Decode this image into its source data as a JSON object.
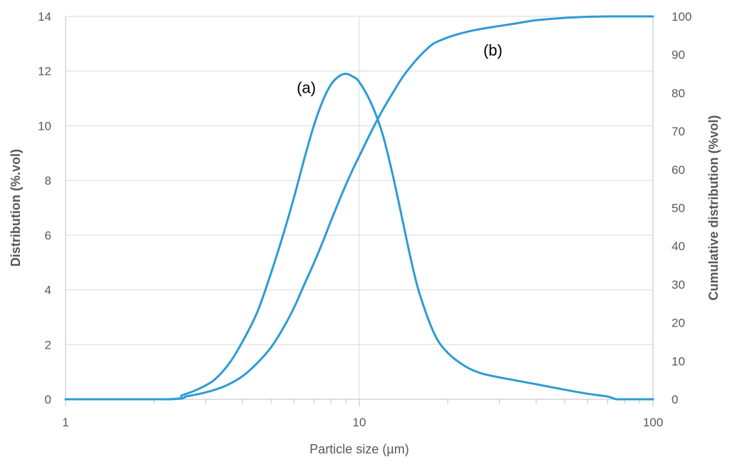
{
  "chart_data": {
    "type": "line",
    "x_scale": "log",
    "xlabel": "Particle size (µm)",
    "ylabel_left": "Distribution (%.vol)",
    "ylabel_right": "Cumulative distribution (%vol)",
    "xlim": [
      1,
      100
    ],
    "ylim_left": [
      0,
      14
    ],
    "ylim_right": [
      0,
      100
    ],
    "x_ticks": [
      1,
      10,
      100
    ],
    "y_ticks_left": [
      0,
      2,
      4,
      6,
      8,
      10,
      12,
      14
    ],
    "y_ticks_right": [
      0,
      10,
      20,
      30,
      40,
      50,
      60,
      70,
      80,
      90,
      100
    ],
    "grid": true,
    "color": "#2e9bd6",
    "annotations": [
      {
        "text": "(a)",
        "series": "distribution"
      },
      {
        "text": "(b)",
        "series": "cumulative"
      }
    ],
    "series": [
      {
        "id": "distribution",
        "axis": "left",
        "x": [
          1,
          2.25,
          2.5,
          2.8,
          3.2,
          3.6,
          4.0,
          4.5,
          5.0,
          5.5,
          6.0,
          6.5,
          7.0,
          7.5,
          8.0,
          8.5,
          9.0,
          9.5,
          10.0,
          11.0,
          12.0,
          13.0,
          14.0,
          15.0,
          16.0,
          18.0,
          20.0,
          23.0,
          26.0,
          30.0,
          40.0,
          50.0,
          60.0,
          70.0,
          75.0,
          80.0,
          100.0
        ],
        "y": [
          0,
          0,
          0.15,
          0.35,
          0.7,
          1.3,
          2.1,
          3.2,
          4.6,
          6.0,
          7.4,
          8.8,
          10.0,
          10.9,
          11.5,
          11.8,
          11.9,
          11.8,
          11.6,
          10.8,
          9.7,
          8.2,
          6.6,
          5.1,
          3.9,
          2.4,
          1.7,
          1.2,
          0.95,
          0.8,
          0.55,
          0.35,
          0.2,
          0.1,
          0.0,
          0.0,
          0.0
        ]
      },
      {
        "id": "cumulative",
        "axis": "right",
        "x": [
          1,
          2.25,
          2.6,
          3.0,
          3.5,
          4.0,
          4.5,
          5.0,
          5.5,
          6.0,
          6.5,
          7.0,
          7.5,
          8.0,
          8.5,
          9.0,
          9.5,
          10.0,
          11.0,
          12.0,
          13.0,
          14.0,
          15.0,
          16.0,
          17.0,
          18.0,
          20.0,
          22.0,
          25.0,
          30.0,
          35.0,
          40.0,
          50.0,
          60.0,
          70.0,
          100.0
        ],
        "y": [
          0,
          0,
          0.8,
          1.8,
          3.5,
          6.0,
          9.5,
          13.5,
          18.5,
          24.0,
          30.0,
          35.5,
          41.0,
          46.5,
          51.5,
          56.0,
          60.0,
          63.5,
          70.0,
          75.5,
          80.0,
          84.0,
          87.0,
          89.5,
          91.5,
          93.0,
          94.5,
          95.5,
          96.5,
          97.5,
          98.3,
          99.0,
          99.6,
          99.9,
          100.0,
          100.0
        ]
      }
    ]
  }
}
